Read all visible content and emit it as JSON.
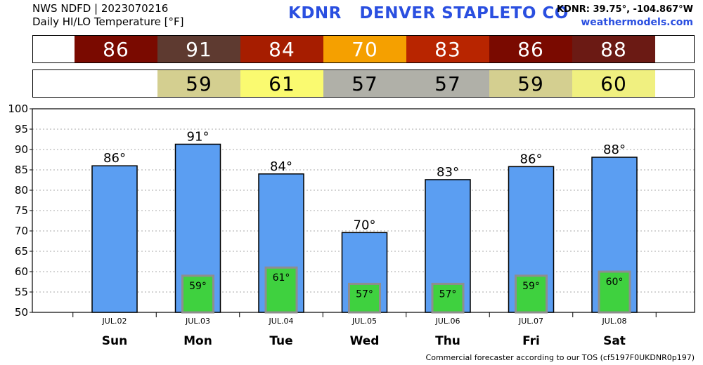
{
  "header": {
    "line1": "NWS NDFD | 2023070216",
    "line2": "Daily HI/LO Temperature [°F]",
    "station": "KDNR   DENVER STAPLETO CO",
    "coords": "KDNR: 39.75°, -104.867°W",
    "site": "weathermodels.com"
  },
  "footer": "Commercial forecaster according to our TOS (cf5197F0UKDNR0p197)",
  "colors": {
    "bar_high": "#5b9ef2",
    "bar_low": "#3fd13f",
    "bar_low_border": "#8e8e8e"
  },
  "strip_high": [
    {
      "text": "86",
      "color": "#7a0a00"
    },
    {
      "text": "91",
      "color": "#5e3a30"
    },
    {
      "text": "84",
      "color": "#a61d00"
    },
    {
      "text": "70",
      "color": "#f5a000"
    },
    {
      "text": "83",
      "color": "#b82500"
    },
    {
      "text": "86",
      "color": "#7a0a00"
    },
    {
      "text": "88",
      "color": "#6b1a14"
    }
  ],
  "strip_low": [
    {
      "text": "",
      "color": "#ffffff"
    },
    {
      "text": "59",
      "color": "#d4cf90"
    },
    {
      "text": "61",
      "color": "#fafa70"
    },
    {
      "text": "57",
      "color": "#b0b0a8"
    },
    {
      "text": "57",
      "color": "#b0b0a8"
    },
    {
      "text": "59",
      "color": "#d4cf90"
    },
    {
      "text": "60",
      "color": "#f0f080"
    }
  ],
  "chart_data": {
    "type": "bar",
    "categories": [
      "Sun",
      "Mon",
      "Tue",
      "Wed",
      "Thu",
      "Fri",
      "Sat"
    ],
    "dates": [
      "JUL.02",
      "JUL.03",
      "JUL.04",
      "JUL.05",
      "JUL.06",
      "JUL.07",
      "JUL.08"
    ],
    "series": [
      {
        "values": [
          86,
          91.3,
          84,
          69.6,
          82.6,
          85.8,
          88.1
        ],
        "labels": [
          "86°",
          "91°",
          "84°",
          "70°",
          "83°",
          "86°",
          "88°"
        ]
      },
      {
        "values": [
          null,
          59,
          61,
          57,
          57,
          59,
          60
        ],
        "labels": [
          "",
          "59°",
          "61°",
          "57°",
          "57°",
          "59°",
          "60°"
        ]
      }
    ],
    "ylim": [
      50,
      100
    ],
    "yticks": [
      "50",
      "55",
      "60",
      "65",
      "70",
      "75",
      "80",
      "85",
      "90",
      "95",
      "100"
    ],
    "grid": true,
    "title": "",
    "xlabel": "",
    "ylabel": ""
  }
}
